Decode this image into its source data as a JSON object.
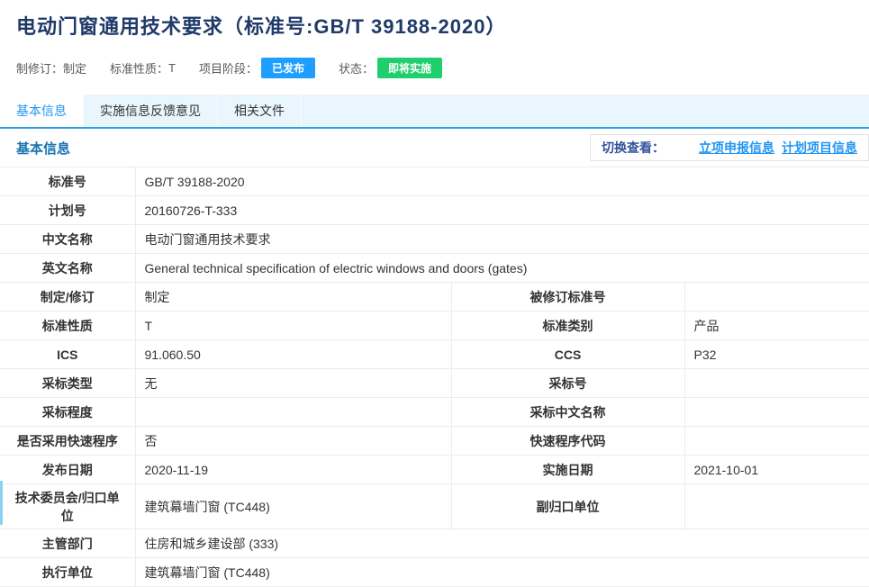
{
  "header": {
    "title": "电动门窗通用技术要求（标准号:GB/T 39188-2020）",
    "meta": [
      {
        "label": "制修订：",
        "value": "制定"
      },
      {
        "label": "标准性质：",
        "value": "T"
      },
      {
        "label": "项目阶段：",
        "badge": "已发布",
        "badge_color": "#1e9fff"
      },
      {
        "label": "状态：",
        "badge": "即将实施",
        "badge_color": "#1fce6d"
      }
    ]
  },
  "tabs": [
    {
      "label": "基本信息",
      "active": true
    },
    {
      "label": "实施信息反馈意见",
      "active": false
    },
    {
      "label": "相关文件",
      "active": false
    }
  ],
  "section": {
    "title": "基本信息",
    "switch_label": "切换查看：",
    "links": [
      "立项申报信息",
      "计划项目信息"
    ]
  },
  "table": {
    "rows": [
      {
        "type": "full",
        "label": "标准号",
        "value": "GB/T 39188-2020"
      },
      {
        "type": "full",
        "label": "计划号",
        "value": "20160726-T-333"
      },
      {
        "type": "full",
        "label": "中文名称",
        "value": "电动门窗通用技术要求"
      },
      {
        "type": "full",
        "label": "英文名称",
        "value": "General technical specification of electric windows and doors (gates)"
      },
      {
        "type": "split",
        "label1": "制定/修订",
        "value1": "制定",
        "label2": "被修订标准号",
        "value2": ""
      },
      {
        "type": "split",
        "label1": "标准性质",
        "value1": "T",
        "label2": "标准类别",
        "value2": "产品"
      },
      {
        "type": "split",
        "label1": "ICS",
        "value1": "91.060.50",
        "label2": "CCS",
        "value2": "P32"
      },
      {
        "type": "split",
        "label1": "采标类型",
        "value1": "无",
        "label2": "采标号",
        "value2": ""
      },
      {
        "type": "split",
        "label1": "采标程度",
        "value1": "",
        "label2": "采标中文名称",
        "value2": ""
      },
      {
        "type": "split",
        "label1": "是否采用快速程序",
        "value1": "否",
        "label2": "快速程序代码",
        "value2": ""
      },
      {
        "type": "split",
        "label1": "发布日期",
        "value1": "2020-11-19",
        "label2": "实施日期",
        "value2": "2021-10-01"
      },
      {
        "type": "split",
        "label1": "技术委员会/归口单位",
        "value1": "建筑幕墙门窗 (TC448)",
        "label2": "副归口单位",
        "value2": "",
        "tall": true
      },
      {
        "type": "full",
        "label": "主管部门",
        "value": "住房和城乡建设部 (333)"
      },
      {
        "type": "full",
        "label": "执行单位",
        "value": "建筑幕墙门窗 (TC448)"
      }
    ]
  },
  "colors": {
    "accent_blue": "#2196f3",
    "tab_strip_bg": "#e9f6fd",
    "badge_blue": "#1e9fff",
    "badge_green": "#1fce6d",
    "title_navy": "#1f3a68",
    "section_blue": "#1a74b0",
    "table_border": "#ececec"
  }
}
